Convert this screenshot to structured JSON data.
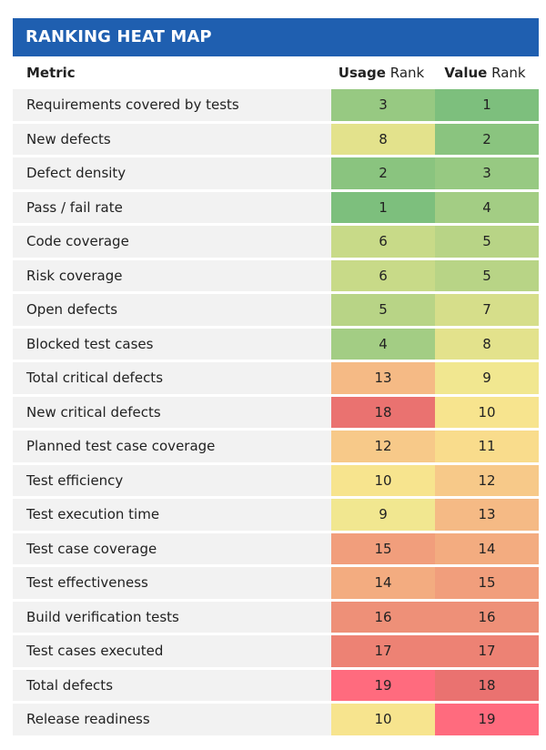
{
  "title": "RANKING HEAT MAP",
  "headers": {
    "metric": "Metric",
    "usage_bold": "Usage",
    "usage_rest": " Rank",
    "value_bold": "Value",
    "value_rest": " Rank"
  },
  "colors": {
    "title_bar": "#1f5fb0",
    "row_label_bg": "#f2f2f2",
    "rank_scale": {
      "1": "#7dbf7d",
      "2": "#8ac47f",
      "3": "#97c982",
      "4": "#a3cd84",
      "5": "#b8d486",
      "6": "#c8da88",
      "7": "#d6de8a",
      "8": "#e3e28c",
      "9": "#f1e790",
      "10": "#f7e48e",
      "11": "#f9dc8c",
      "12": "#f7c989",
      "13": "#f5ba85",
      "14": "#f3ac80",
      "15": "#f19e7c",
      "16": "#ee9078",
      "17": "#ed8274",
      "18": "#ea7270",
      "19": "#ff6b7e"
    }
  },
  "chart_data": {
    "type": "table",
    "title": "RANKING HEAT MAP",
    "columns": [
      "Metric",
      "Usage Rank",
      "Value Rank"
    ],
    "rows": [
      {
        "metric": "Requirements covered by tests",
        "usage": 3,
        "value": 1
      },
      {
        "metric": "New defects",
        "usage": 8,
        "value": 2
      },
      {
        "metric": "Defect density",
        "usage": 2,
        "value": 3
      },
      {
        "metric": "Pass / fail rate",
        "usage": 1,
        "value": 4
      },
      {
        "metric": "Code coverage",
        "usage": 6,
        "value": 5
      },
      {
        "metric": "Risk coverage",
        "usage": 6,
        "value": 5
      },
      {
        "metric": "Open defects",
        "usage": 5,
        "value": 7
      },
      {
        "metric": "Blocked test cases",
        "usage": 4,
        "value": 8
      },
      {
        "metric": "Total critical defects",
        "usage": 13,
        "value": 9
      },
      {
        "metric": "New critical defects",
        "usage": 18,
        "value": 10
      },
      {
        "metric": "Planned test case coverage",
        "usage": 12,
        "value": 11
      },
      {
        "metric": "Test efficiency",
        "usage": 10,
        "value": 12
      },
      {
        "metric": "Test execution time",
        "usage": 9,
        "value": 13
      },
      {
        "metric": "Test case coverage",
        "usage": 15,
        "value": 14
      },
      {
        "metric": "Test effectiveness",
        "usage": 14,
        "value": 15
      },
      {
        "metric": "Build verification tests",
        "usage": 16,
        "value": 16
      },
      {
        "metric": "Test cases executed",
        "usage": 17,
        "value": 17
      },
      {
        "metric": "Total defects",
        "usage": 19,
        "value": 18
      },
      {
        "metric": "Release readiness",
        "usage": 10,
        "value": 19
      }
    ]
  }
}
